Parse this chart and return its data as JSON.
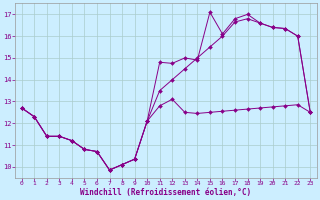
{
  "xlabel": "Windchill (Refroidissement éolien,°C)",
  "background_color": "#cceeff",
  "grid_color": "#aacccc",
  "line_color": "#880088",
  "xlim": [
    -0.5,
    23.5
  ],
  "ylim": [
    9.5,
    17.5
  ],
  "xticks": [
    0,
    1,
    2,
    3,
    4,
    5,
    6,
    7,
    8,
    9,
    10,
    11,
    12,
    13,
    14,
    15,
    16,
    17,
    18,
    19,
    20,
    21,
    22,
    23
  ],
  "yticks": [
    10,
    11,
    12,
    13,
    14,
    15,
    16,
    17
  ],
  "line1_x": [
    0,
    1,
    2,
    3,
    4,
    5,
    6,
    7,
    8,
    9,
    10,
    11,
    12,
    13,
    14,
    15,
    16,
    17,
    18,
    19,
    20,
    21,
    22,
    23
  ],
  "line1_y": [
    12.7,
    12.3,
    11.4,
    11.4,
    11.2,
    10.8,
    10.7,
    9.85,
    10.1,
    10.35,
    12.1,
    12.8,
    13.1,
    12.5,
    12.45,
    12.5,
    12.55,
    12.6,
    12.65,
    12.7,
    12.75,
    12.8,
    12.85,
    12.5
  ],
  "line2_x": [
    0,
    1,
    2,
    3,
    4,
    5,
    6,
    7,
    8,
    9,
    10,
    11,
    12,
    13,
    14,
    15,
    16,
    17,
    18,
    19,
    20,
    21,
    22,
    23
  ],
  "line2_y": [
    12.7,
    12.3,
    11.4,
    11.4,
    11.2,
    10.8,
    10.7,
    9.85,
    10.1,
    10.35,
    12.1,
    14.8,
    14.75,
    15.0,
    14.9,
    17.1,
    16.1,
    16.8,
    17.0,
    16.6,
    16.4,
    16.35,
    16.0,
    12.5
  ],
  "line3_x": [
    0,
    1,
    2,
    3,
    4,
    5,
    6,
    7,
    8,
    9,
    10,
    11,
    12,
    13,
    14,
    15,
    16,
    17,
    18,
    19,
    20,
    21,
    22,
    23
  ],
  "line3_y": [
    12.7,
    12.3,
    11.4,
    11.4,
    11.2,
    10.8,
    10.7,
    9.85,
    10.1,
    10.35,
    12.1,
    13.5,
    14.0,
    14.5,
    15.0,
    15.5,
    16.0,
    16.65,
    16.8,
    16.6,
    16.4,
    16.35,
    16.0,
    12.5
  ]
}
